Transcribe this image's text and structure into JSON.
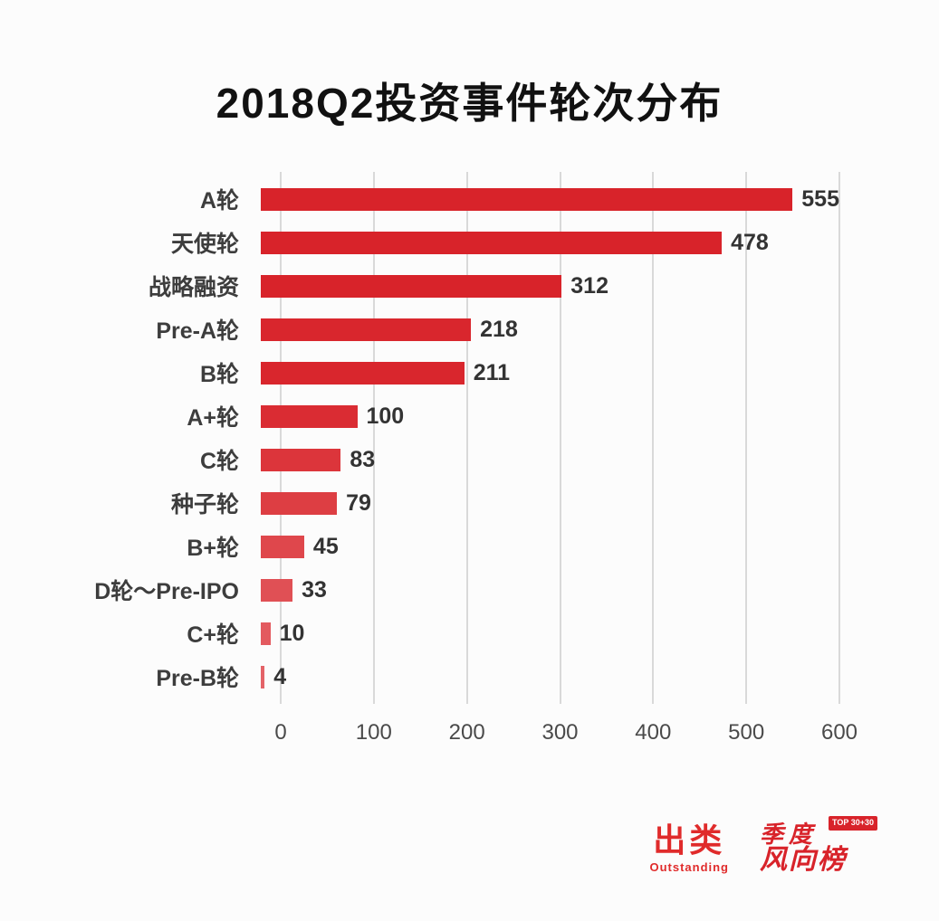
{
  "title": "2018Q2投资事件轮次分布",
  "chart_data": {
    "type": "bar",
    "orientation": "horizontal",
    "title": "2018Q2投资事件轮次分布",
    "categories": [
      "A轮",
      "天使轮",
      "战略融资",
      "Pre-A轮",
      "B轮",
      "A+轮",
      "C轮",
      "种子轮",
      "B+轮",
      "D轮～Pre-IPO",
      "C+轮",
      "Pre-B轮"
    ],
    "values": [
      555,
      478,
      312,
      218,
      211,
      100,
      83,
      79,
      45,
      33,
      10,
      4
    ],
    "bar_colors": [
      "#d8232a",
      "#d8232a",
      "#d8232a",
      "#d9262d",
      "#d9262d",
      "#da2c33",
      "#dc353b",
      "#dd3e43",
      "#df474c",
      "#e05055",
      "#e35a5f",
      "#e46368"
    ],
    "xlabel": "",
    "ylabel": "",
    "xlim": [
      0,
      600
    ],
    "x_ticks": [
      0,
      100,
      200,
      300,
      400,
      500,
      600
    ],
    "grid": "vertical",
    "legend": "none"
  },
  "footer": {
    "brand_name": "出类",
    "brand_sub": "Outstanding",
    "seal_line1": "季度",
    "seal_line2": "风向榜",
    "seal_badge": "TOP 30+30"
  },
  "colors": {
    "bar_red": "#d8232a",
    "gridline": "#d9d9d9",
    "label_text": "#3d3d3d",
    "value_text": "#333333",
    "tick_text": "#4a4a4a",
    "background": "#fcfcfc"
  }
}
